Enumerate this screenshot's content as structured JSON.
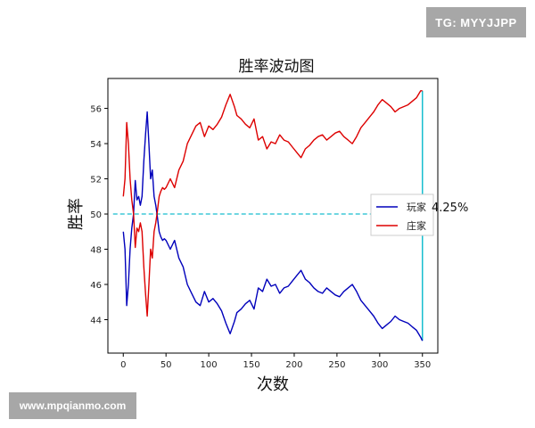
{
  "watermarks": {
    "top_right": "TG: MYYJJPP",
    "bottom_left": "www.mpqianmo.com"
  },
  "chart_data": {
    "type": "line",
    "title": "胜率波动图",
    "xlabel": "次数",
    "ylabel": "胜率",
    "xlim": [
      -18,
      368
    ],
    "ylim": [
      42.1,
      57.7
    ],
    "xticks": [
      0,
      50,
      100,
      150,
      200,
      250,
      300,
      350
    ],
    "yticks": [
      44,
      46,
      48,
      50,
      52,
      54,
      56
    ],
    "grid": false,
    "legend_position": "center-right",
    "reference_line": {
      "y": 50,
      "style": "dashed",
      "color": "#17becf"
    },
    "final_vertical_line": {
      "x": 350,
      "y_from": 42.8,
      "y_to": 57.0,
      "color": "#17becf"
    },
    "annotation": "4.25%",
    "series": [
      {
        "name": "玩家",
        "color": "#0000bb",
        "x": [
          0,
          2,
          4,
          6,
          8,
          10,
          12,
          14,
          16,
          18,
          20,
          22,
          24,
          26,
          28,
          30,
          32,
          34,
          36,
          38,
          40,
          42,
          44,
          46,
          48,
          50,
          55,
          60,
          65,
          70,
          75,
          80,
          85,
          90,
          95,
          100,
          105,
          110,
          115,
          120,
          125,
          130,
          133,
          138,
          143,
          148,
          153,
          158,
          163,
          168,
          173,
          178,
          183,
          188,
          193,
          198,
          203,
          208,
          213,
          218,
          223,
          228,
          233,
          238,
          243,
          248,
          253,
          258,
          263,
          268,
          273,
          278,
          283,
          288,
          293,
          298,
          303,
          308,
          313,
          318,
          323,
          328,
          333,
          338,
          343,
          348,
          350
        ],
        "values": [
          49.0,
          48.0,
          44.8,
          46.0,
          48.0,
          49.2,
          50.0,
          51.9,
          50.8,
          51.0,
          50.5,
          51.0,
          53.0,
          54.5,
          55.8,
          54.0,
          52.0,
          52.5,
          51.0,
          50.5,
          49.8,
          49.0,
          48.7,
          48.5,
          48.6,
          48.5,
          48.0,
          48.5,
          47.5,
          47.0,
          46.0,
          45.5,
          45.0,
          44.8,
          45.6,
          45.0,
          45.2,
          44.9,
          44.5,
          43.8,
          43.2,
          43.9,
          44.4,
          44.6,
          44.9,
          45.1,
          44.6,
          45.8,
          45.6,
          46.3,
          45.9,
          46.0,
          45.5,
          45.8,
          45.9,
          46.2,
          46.5,
          46.8,
          46.3,
          46.1,
          45.8,
          45.6,
          45.5,
          45.8,
          45.6,
          45.4,
          45.3,
          45.6,
          45.8,
          46.0,
          45.6,
          45.1,
          44.8,
          44.5,
          44.2,
          43.8,
          43.5,
          43.7,
          43.9,
          44.2,
          44.0,
          43.9,
          43.8,
          43.6,
          43.4,
          43.0,
          42.8
        ]
      },
      {
        "name": "庄家",
        "color": "#dd0000",
        "x": [
          0,
          2,
          4,
          6,
          8,
          10,
          12,
          14,
          16,
          18,
          20,
          22,
          24,
          26,
          28,
          30,
          32,
          34,
          36,
          38,
          40,
          42,
          44,
          46,
          48,
          50,
          55,
          60,
          65,
          70,
          75,
          80,
          85,
          90,
          95,
          100,
          105,
          110,
          115,
          120,
          125,
          130,
          133,
          138,
          143,
          148,
          153,
          158,
          163,
          168,
          173,
          178,
          183,
          188,
          193,
          198,
          203,
          208,
          213,
          218,
          223,
          228,
          233,
          238,
          243,
          248,
          253,
          258,
          263,
          268,
          273,
          278,
          283,
          288,
          293,
          298,
          303,
          308,
          313,
          318,
          323,
          328,
          333,
          338,
          343,
          348,
          350
        ],
        "values": [
          51.0,
          52.0,
          55.2,
          54.0,
          52.0,
          50.8,
          50.0,
          48.1,
          49.2,
          49.0,
          49.5,
          49.0,
          47.0,
          45.5,
          44.2,
          46.0,
          48.0,
          47.5,
          49.0,
          49.5,
          50.2,
          51.0,
          51.3,
          51.5,
          51.4,
          51.5,
          52.0,
          51.5,
          52.5,
          53.0,
          54.0,
          54.5,
          55.0,
          55.2,
          54.4,
          55.0,
          54.8,
          55.1,
          55.5,
          56.2,
          56.8,
          56.1,
          55.6,
          55.4,
          55.1,
          54.9,
          55.4,
          54.2,
          54.4,
          53.7,
          54.1,
          54.0,
          54.5,
          54.2,
          54.1,
          53.8,
          53.5,
          53.2,
          53.7,
          53.9,
          54.2,
          54.4,
          54.5,
          54.2,
          54.4,
          54.6,
          54.7,
          54.4,
          54.2,
          54.0,
          54.4,
          54.9,
          55.2,
          55.5,
          55.8,
          56.2,
          56.5,
          56.3,
          56.1,
          55.8,
          56.0,
          56.1,
          56.2,
          56.4,
          56.6,
          57.0,
          57.0
        ]
      }
    ]
  }
}
